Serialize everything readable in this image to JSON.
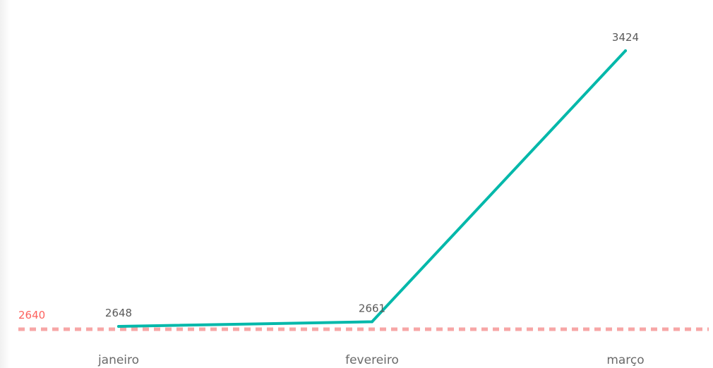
{
  "chart_data": {
    "type": "line",
    "title": "",
    "xlabel": "",
    "ylabel": "",
    "categories": [
      "janeiro",
      "fevereiro",
      "março"
    ],
    "series": [
      {
        "values": [
          2648,
          2661,
          3424
        ],
        "data_labels": [
          "2648",
          "2661",
          "3424"
        ],
        "color": "#01B8AA"
      }
    ],
    "reference_line": {
      "value": 2640,
      "label": "2640",
      "color": "#F7A6A6",
      "label_color": "#FD625E",
      "style": "dashed"
    },
    "ylim": [
      2640,
      3424
    ],
    "grid": false,
    "legend": "none"
  }
}
